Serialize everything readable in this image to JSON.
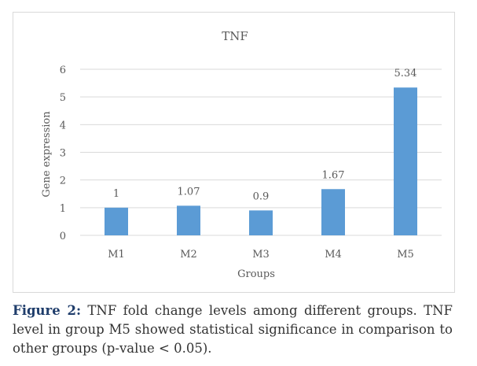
{
  "chart_data": {
    "type": "bar",
    "title": "TNF",
    "xlabel": "Groups",
    "ylabel": "Gene expression",
    "categories": [
      "M1",
      "M2",
      "M3",
      "M4",
      "M5"
    ],
    "values": [
      1,
      1.07,
      0.9,
      1.67,
      5.34
    ],
    "data_labels": [
      "1",
      "1.07",
      "0.9",
      "1.67",
      "5.34"
    ],
    "ylim": [
      0,
      6
    ],
    "yticks": [
      0,
      1,
      2,
      3,
      4,
      5,
      6
    ],
    "grid": true,
    "bar_color": "#5b9bd5"
  },
  "caption": {
    "label": "Figure 2:",
    "text": " TNF fold change levels among different groups. TNF level in group M5 showed statistical significance in comparison to other groups (p-value < 0.05)."
  }
}
